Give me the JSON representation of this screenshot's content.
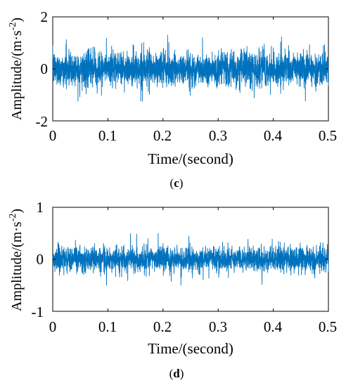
{
  "chart_data": [
    {
      "type": "line",
      "panel_label_open": "(",
      "panel_label": "c",
      "panel_label_close": ")",
      "xlabel": "Time/(second)",
      "ylabel": "Amplitude/(m·s",
      "ylabel_sup": "-2",
      "ylabel_end": ")",
      "xlim": [
        0,
        0.5
      ],
      "ylim": [
        -2,
        2
      ],
      "xticks": [
        "0",
        "0.1",
        "0.2",
        "0.3",
        "0.4",
        "0.5"
      ],
      "yticks": [
        "-2",
        "0",
        "2"
      ],
      "grid": false,
      "color": "#0072BD",
      "series_description_omitted": true,
      "signal_rms": 0.33,
      "signal_peak_max": 1.5,
      "signal_peak_min": -1.25
    },
    {
      "type": "line",
      "panel_label_open": "(",
      "panel_label": "d",
      "panel_label_close": ")",
      "xlabel": "Time/(second)",
      "ylabel": "Amplitude/(m·s",
      "ylabel_sup": "-2",
      "ylabel_end": ")",
      "xlim": [
        0,
        0.5
      ],
      "ylim": [
        -1,
        1
      ],
      "xticks": [
        "0",
        "0.1",
        "0.2",
        "0.3",
        "0.4",
        "0.5"
      ],
      "yticks": [
        "-1",
        "0",
        "1"
      ],
      "grid": false,
      "color": "#0072BD",
      "series_description_omitted": true,
      "signal_rms": 0.12,
      "signal_peak_max": 0.5,
      "signal_peak_min": -0.5
    }
  ]
}
